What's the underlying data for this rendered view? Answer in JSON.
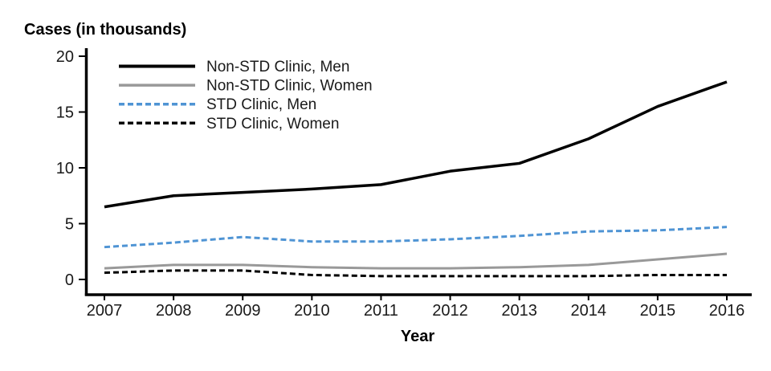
{
  "chart_data": {
    "type": "line",
    "title": "Cases (in thousands)",
    "xlabel": "Year",
    "ylabel": "Cases (in thousands)",
    "categories": [
      "2007",
      "2008",
      "2009",
      "2010",
      "2011",
      "2012",
      "2013",
      "2014",
      "2015",
      "2016"
    ],
    "y_ticks": [
      0,
      5,
      10,
      15,
      20
    ],
    "ylim": [
      0,
      20
    ],
    "grid": false,
    "legend_position": "inside-top-left",
    "series": [
      {
        "name": "Non-STD Clinic, Men",
        "color": "#000000",
        "dash": null,
        "stroke_width": 3.5,
        "values": [
          6.5,
          7.5,
          7.8,
          8.1,
          8.5,
          9.7,
          10.4,
          12.6,
          15.5,
          17.7
        ]
      },
      {
        "name": "Non-STD Clinic, Women",
        "color": "#999999",
        "dash": null,
        "stroke_width": 3,
        "values": [
          1.0,
          1.3,
          1.3,
          1.1,
          1.0,
          1.0,
          1.1,
          1.3,
          1.8,
          2.3
        ]
      },
      {
        "name": "STD Clinic, Men",
        "color": "#4f94d4",
        "dash": "7,4",
        "stroke_width": 3,
        "values": [
          2.9,
          3.3,
          3.8,
          3.4,
          3.4,
          3.6,
          3.9,
          4.3,
          4.4,
          4.7
        ]
      },
      {
        "name": "STD Clinic, Women",
        "color": "#000000",
        "dash": "7,4",
        "stroke_width": 3,
        "values": [
          0.6,
          0.8,
          0.8,
          0.4,
          0.3,
          0.3,
          0.3,
          0.3,
          0.4,
          0.4
        ]
      }
    ]
  }
}
